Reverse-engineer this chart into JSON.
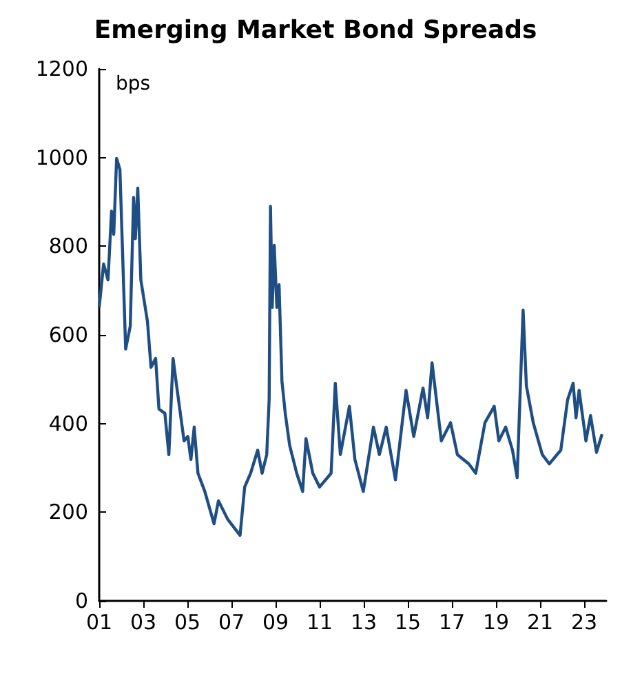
{
  "chart_data": {
    "type": "line",
    "title": "Emerging Market Bond Spreads",
    "ylabel": "bps",
    "x": [
      2001.0,
      2001.2,
      2001.4,
      2001.56,
      2001.66,
      2001.79,
      2001.94,
      2002.2,
      2002.41,
      2002.56,
      2002.64,
      2002.75,
      2002.89,
      2003.19,
      2003.35,
      2003.56,
      2003.71,
      2003.98,
      2004.16,
      2004.35,
      2004.54,
      2004.85,
      2005.02,
      2005.16,
      2005.31,
      2005.48,
      2005.79,
      2006.21,
      2006.41,
      2006.83,
      2007.39,
      2007.6,
      2007.87,
      2008.19,
      2008.39,
      2008.6,
      2008.71,
      2008.77,
      2008.85,
      2008.94,
      2009.06,
      2009.16,
      2009.29,
      2009.44,
      2009.64,
      2009.96,
      2010.23,
      2010.38,
      2010.69,
      2011.0,
      2011.52,
      2011.71,
      2011.94,
      2012.35,
      2012.6,
      2012.98,
      2013.44,
      2013.71,
      2014.02,
      2014.44,
      2014.92,
      2015.27,
      2015.69,
      2015.9,
      2016.1,
      2016.52,
      2016.94,
      2017.25,
      2017.77,
      2018.08,
      2018.5,
      2018.92,
      2019.13,
      2019.44,
      2019.75,
      2019.96,
      2020.23,
      2020.38,
      2020.69,
      2021.1,
      2021.42,
      2021.94,
      2022.25,
      2022.5,
      2022.63,
      2022.77,
      2023.08,
      2023.29,
      2023.56,
      2023.81
    ],
    "series": [
      {
        "color": "#1f4e85",
        "values": [
          662,
          760,
          724,
          879,
          827,
          998,
          973,
          568,
          620,
          910,
          817,
          931,
          724,
          630,
          527,
          547,
          433,
          423,
          330,
          547,
          475,
          361,
          371,
          319,
          392,
          288,
          247,
          174,
          226,
          184,
          148,
          257,
          288,
          340,
          288,
          330,
          454,
          890,
          662,
          802,
          662,
          713,
          496,
          423,
          351,
          288,
          247,
          366,
          288,
          257,
          288,
          491,
          330,
          439,
          319,
          247,
          392,
          330,
          392,
          273,
          475,
          371,
          480,
          413,
          537,
          361,
          402,
          330,
          309,
          288,
          402,
          439,
          361,
          392,
          340,
          278,
          656,
          485,
          402,
          330,
          309,
          340,
          454,
          491,
          413,
          475,
          361,
          418,
          335,
          376
        ]
      }
    ],
    "xlim": [
      2001,
      2024
    ],
    "xticks": [
      {
        "value": 2001,
        "label": "01"
      },
      {
        "value": 2003,
        "label": "03"
      },
      {
        "value": 2005,
        "label": "05"
      },
      {
        "value": 2007,
        "label": "07"
      },
      {
        "value": 2009,
        "label": "09"
      },
      {
        "value": 2011,
        "label": "11"
      },
      {
        "value": 2013,
        "label": "13"
      },
      {
        "value": 2015,
        "label": "15"
      },
      {
        "value": 2017,
        "label": "17"
      },
      {
        "value": 2019,
        "label": "19"
      },
      {
        "value": 2021,
        "label": "21"
      },
      {
        "value": 2023,
        "label": "23"
      }
    ],
    "ylim": [
      0,
      1200
    ],
    "yticks": [
      0,
      200,
      400,
      600,
      800,
      1000,
      1200
    ],
    "grid": false,
    "marker": "none",
    "line_style": "solid"
  }
}
